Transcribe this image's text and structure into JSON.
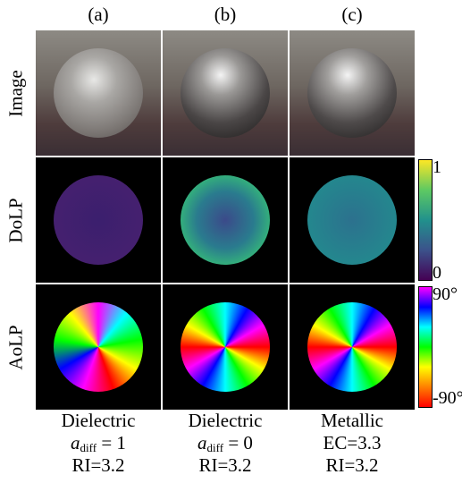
{
  "columns": [
    "(a)",
    "(b)",
    "(c)"
  ],
  "rows": [
    "Image",
    "DoLP",
    "AoLP"
  ],
  "colorbars": {
    "dolp": {
      "top": "1",
      "bottom": "0"
    },
    "aolp": {
      "top": "90°",
      "bottom": "-90°"
    }
  },
  "captions": [
    {
      "material": "Dielectric",
      "param": {
        "symbol": "a",
        "subscript": "diff",
        "rest": "= 1"
      },
      "ri": "RI=3.2"
    },
    {
      "material": "Dielectric",
      "param": {
        "symbol": "a",
        "subscript": "diff",
        "rest": "= 0"
      },
      "ri": "RI=3.2"
    },
    {
      "material": "Metallic",
      "param": {
        "text": "EC=3.3"
      },
      "ri": "RI=3.2"
    }
  ]
}
